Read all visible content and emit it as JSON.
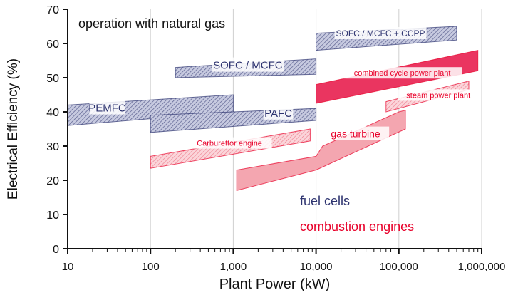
{
  "chart_data": {
    "type": "area",
    "title": "operation with natural gas",
    "xlabel": "Plant Power (kW)",
    "ylabel": "Electrical Efficiency (%)",
    "x_scale": "log",
    "xlim": [
      10,
      1000000
    ],
    "ylim": [
      0,
      70
    ],
    "xticks": [
      {
        "value": 10,
        "label": "10"
      },
      {
        "value": 100,
        "label": "100"
      },
      {
        "value": 1000,
        "label": "1,000"
      },
      {
        "value": 10000,
        "label": "10,000"
      },
      {
        "value": 100000,
        "label": "100,000"
      },
      {
        "value": 1000000,
        "label": "1,000,000"
      }
    ],
    "yticks": [
      0,
      10,
      20,
      30,
      40,
      50,
      60,
      70
    ],
    "grid": "x-decades",
    "colors": {
      "fuel_cells": "#2e3470",
      "combustion": "#e8002a",
      "fuel_cells_fill": "#b9bdd6",
      "combustion_fill": "#f4a6b0",
      "combustion_dark": "#ea3560",
      "gridline": "#cfcfcf"
    },
    "legend": [
      {
        "name": "fuel cells",
        "color": "#2e3470"
      },
      {
        "name": "combustion engines",
        "color": "#e8002a"
      }
    ],
    "series": [
      {
        "name": "PEMFC",
        "group": "fuel cells",
        "polygon": [
          [
            10,
            42
          ],
          [
            1000,
            45
          ],
          [
            1000,
            40
          ],
          [
            10,
            36
          ]
        ],
        "label_at": [
          30,
          40.5
        ]
      },
      {
        "name": "PAFC",
        "group": "fuel cells",
        "polygon": [
          [
            100,
            39
          ],
          [
            10000,
            41
          ],
          [
            10000,
            37.5
          ],
          [
            100,
            34
          ]
        ],
        "label_at": [
          3500,
          39
        ]
      },
      {
        "name": "SOFC / MCFC",
        "group": "fuel cells",
        "polygon": [
          [
            200,
            53
          ],
          [
            10000,
            55.5
          ],
          [
            10000,
            51
          ],
          [
            200,
            50
          ]
        ],
        "label_at": [
          1500,
          53
        ]
      },
      {
        "name": "SOFC / MCFC + CCPP",
        "group": "fuel cells",
        "polygon": [
          [
            10000,
            63
          ],
          [
            500000,
            65
          ],
          [
            500000,
            61
          ],
          [
            10000,
            58
          ]
        ],
        "label_at": [
          60000,
          62.5
        ]
      },
      {
        "name": "Carburettor engine",
        "group": "combustion engines",
        "polygon": [
          [
            100,
            27
          ],
          [
            8500,
            35
          ],
          [
            8500,
            31.5
          ],
          [
            100,
            23.5
          ]
        ],
        "label_at": [
          900,
          30.5
        ]
      },
      {
        "name": "gas turbine",
        "group": "combustion engines",
        "polygon": [
          [
            1100,
            23
          ],
          [
            10000,
            27
          ],
          [
            12000,
            30
          ],
          [
            100000,
            40
          ],
          [
            120000,
            40.5
          ],
          [
            120000,
            35
          ],
          [
            10000,
            23
          ],
          [
            1100,
            17
          ]
        ],
        "label_at": [
          30000,
          33
        ]
      },
      {
        "name": "combined cycle power plant",
        "group": "combustion engines",
        "polygon": [
          [
            10000,
            48
          ],
          [
            900000,
            58
          ],
          [
            900000,
            52
          ],
          [
            10000,
            42.5
          ]
        ],
        "label_at": [
          110000,
          51
        ]
      },
      {
        "name": "steam power plant",
        "group": "combustion engines",
        "polygon": [
          [
            70000,
            43
          ],
          [
            700000,
            49
          ],
          [
            700000,
            46.5
          ],
          [
            70000,
            40
          ]
        ],
        "label_at": [
          300000,
          44.5
        ]
      }
    ]
  }
}
